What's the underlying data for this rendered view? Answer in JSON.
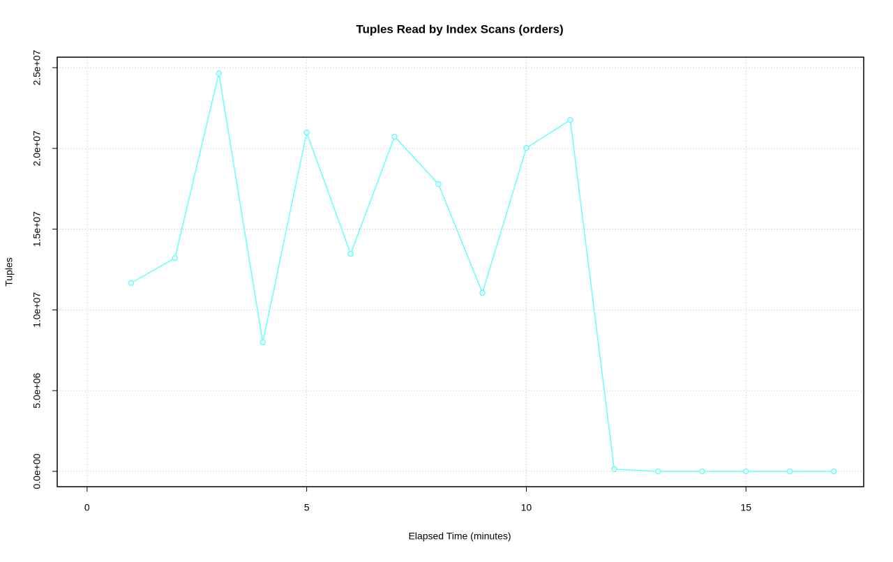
{
  "chart_data": {
    "type": "line",
    "title": "Tuples Read by Index Scans (orders)",
    "x_label": "Elapsed Time (minutes)",
    "y_label": "Tuples",
    "x": [
      1,
      2,
      3,
      4,
      5,
      6,
      7,
      8,
      9,
      10,
      11,
      12,
      13,
      14,
      15,
      16,
      17
    ],
    "series": [
      {
        "color": "#66ffff",
        "values": [
          11660000,
          13210000,
          24650000,
          7990000,
          20980000,
          13470000,
          20730000,
          17790000,
          11050000,
          20030000,
          21760000,
          130000,
          0,
          0,
          0,
          0,
          0
        ]
      }
    ],
    "xlim": [
      -0.68,
      17.68
    ],
    "ylim": [
      -950000,
      25650000
    ],
    "xticks": [
      0,
      5,
      10,
      15
    ],
    "yticks": [
      {
        "value": 0,
        "label": "0.0e+00"
      },
      {
        "value": 5000000,
        "label": "5.0e+06"
      },
      {
        "value": 10000000,
        "label": "1.0e+07"
      },
      {
        "value": 15000000,
        "label": "1.5e+07"
      },
      {
        "value": 20000000,
        "label": "2.0e+07"
      },
      {
        "value": 25000000,
        "label": "2.5e+07"
      }
    ],
    "grid": true
  }
}
